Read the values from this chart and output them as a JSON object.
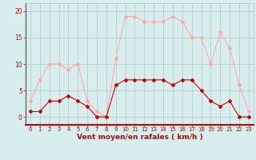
{
  "hours": [
    0,
    1,
    2,
    3,
    4,
    5,
    6,
    7,
    8,
    9,
    10,
    11,
    12,
    13,
    14,
    15,
    16,
    17,
    18,
    19,
    20,
    21,
    22,
    23
  ],
  "avg_wind": [
    1,
    1,
    3,
    3,
    4,
    3,
    2,
    0,
    0,
    6,
    7,
    7,
    7,
    7,
    7,
    6,
    7,
    7,
    5,
    3,
    2,
    3,
    0,
    0
  ],
  "gust_wind": [
    3,
    7,
    10,
    10,
    9,
    10,
    3,
    1,
    0,
    11,
    19,
    19,
    18,
    18,
    18,
    19,
    18,
    15,
    15,
    10,
    16,
    13,
    6,
    1
  ],
  "avg_color": "#cc0000",
  "gust_color": "#ffaaaa",
  "bg_color": "#d8eeee",
  "grid_color": "#b0c8c8",
  "tick_color": "#cc0000",
  "xlabel": "Vent moyen/en rafales ( km/h )",
  "xlabel_color": "#cc0000",
  "yticks": [
    0,
    5,
    10,
    15,
    20
  ],
  "xticks": [
    0,
    1,
    2,
    3,
    4,
    5,
    6,
    7,
    8,
    9,
    10,
    11,
    12,
    13,
    14,
    15,
    16,
    17,
    18,
    19,
    20,
    21,
    22,
    23
  ],
  "ylim": [
    -1.5,
    21.5
  ],
  "xlim": [
    -0.5,
    23.5
  ]
}
